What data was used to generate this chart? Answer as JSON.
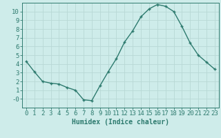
{
  "x": [
    0,
    1,
    2,
    3,
    4,
    5,
    6,
    7,
    8,
    9,
    10,
    11,
    12,
    13,
    14,
    15,
    16,
    17,
    18,
    19,
    20,
    21,
    22,
    23
  ],
  "y": [
    4.3,
    3.1,
    2.0,
    1.8,
    1.7,
    1.3,
    1.0,
    -0.1,
    -0.2,
    1.5,
    3.1,
    4.6,
    6.5,
    7.8,
    9.4,
    10.3,
    10.8,
    10.6,
    10.0,
    8.3,
    6.4,
    5.0,
    4.2,
    3.4
  ],
  "xlabel": "Humidex (Indice chaleur)",
  "line_color": "#2d7a6e",
  "marker_color": "#2d7a6e",
  "bg_color": "#ceecea",
  "grid_color": "#b8d8d5",
  "axis_color": "#2d7a6e",
  "tick_color": "#2d7a6e",
  "xlim": [
    -0.5,
    23.5
  ],
  "ylim": [
    -1.0,
    11.0
  ],
  "yticks": [
    0,
    1,
    2,
    3,
    4,
    5,
    6,
    7,
    8,
    9,
    10
  ],
  "ytick_labels": [
    "-0",
    "1",
    "2",
    "3",
    "4",
    "5",
    "6",
    "7",
    "8",
    "9",
    "10"
  ],
  "xticks": [
    0,
    1,
    2,
    3,
    4,
    5,
    6,
    7,
    8,
    9,
    10,
    11,
    12,
    13,
    14,
    15,
    16,
    17,
    18,
    19,
    20,
    21,
    22,
    23
  ],
  "fontsize_xlabel": 7,
  "fontsize_ticks": 6.5
}
